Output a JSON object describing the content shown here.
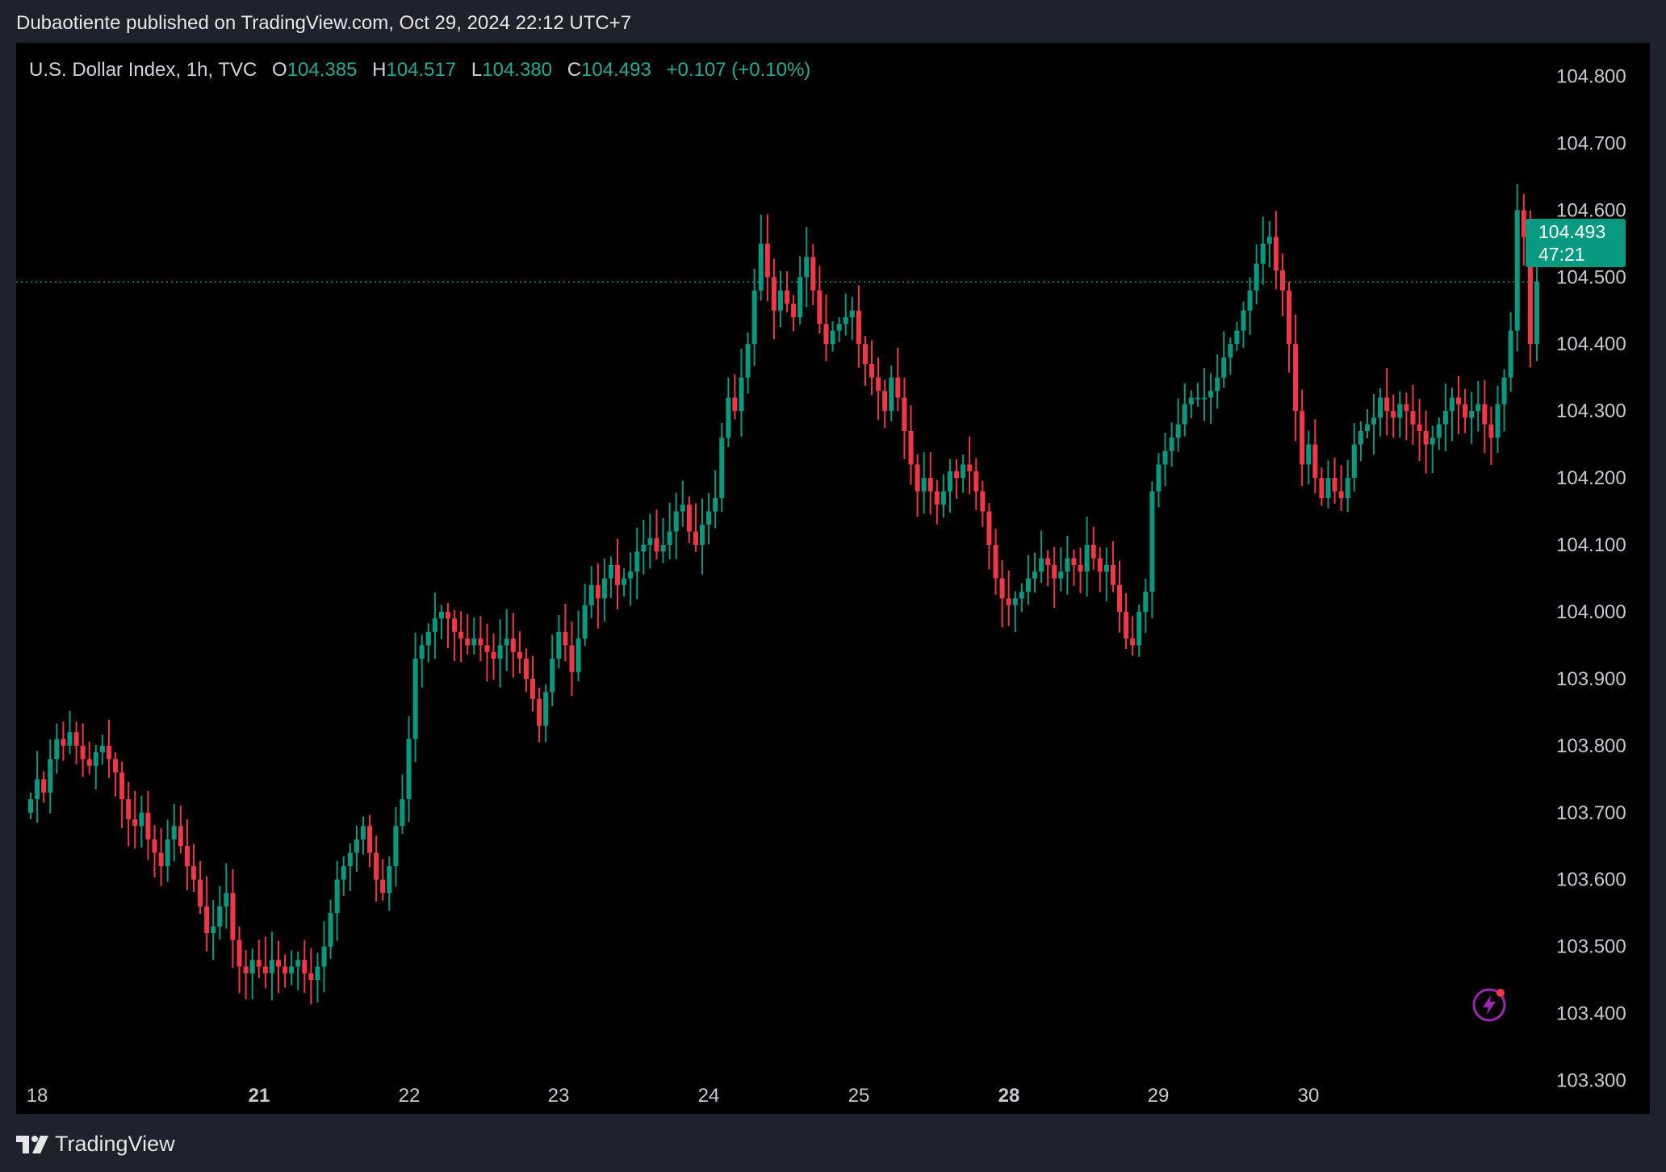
{
  "header": {
    "published": "Dubaotiente published on TradingView.com, Oct 29, 2024 22:12 UTC+7"
  },
  "legend": {
    "symbol": "U.S. Dollar Index, 1h, TVC",
    "open_label": "O",
    "open": "104.385",
    "high_label": "H",
    "high": "104.517",
    "low_label": "L",
    "low": "104.380",
    "close_label": "C",
    "close": "104.493",
    "change": "+0.107 (+0.10%)"
  },
  "price_badge": {
    "price": "104.493",
    "countdown": "47:21"
  },
  "footer": {
    "brand": "TradingView"
  },
  "colors": {
    "up": "#089981",
    "down": "#f23645",
    "background": "#000000",
    "frame": "#1e222d",
    "text": "#c7c9cf"
  },
  "chart_data": {
    "type": "candlestick",
    "ylim": [
      103.25,
      104.85
    ],
    "ytick_labels": [
      "104.800",
      "104.700",
      "104.600",
      "104.500",
      "104.400",
      "104.300",
      "104.200",
      "104.100",
      "104.000",
      "103.900",
      "103.800",
      "103.700",
      "103.600",
      "103.500",
      "103.400",
      "103.300"
    ],
    "xtick_labels": [
      {
        "label": "18",
        "bold": false
      },
      {
        "label": "21",
        "bold": true
      },
      {
        "label": "22",
        "bold": false
      },
      {
        "label": "23",
        "bold": false
      },
      {
        "label": "24",
        "bold": false
      },
      {
        "label": "25",
        "bold": false
      },
      {
        "label": "28",
        "bold": true
      },
      {
        "label": "29",
        "bold": false
      },
      {
        "label": "30",
        "bold": false
      }
    ],
    "last_price": 104.493,
    "closes": [
      103.72,
      103.75,
      103.73,
      103.78,
      103.81,
      103.8,
      103.82,
      103.8,
      103.78,
      103.77,
      103.79,
      103.8,
      103.78,
      103.76,
      103.72,
      103.69,
      103.68,
      103.7,
      103.66,
      103.64,
      103.62,
      103.66,
      103.68,
      103.65,
      103.62,
      103.6,
      103.56,
      103.52,
      103.53,
      103.56,
      103.58,
      103.51,
      103.47,
      103.46,
      103.48,
      103.47,
      103.46,
      103.48,
      103.47,
      103.46,
      103.47,
      103.48,
      103.46,
      103.45,
      103.47,
      103.5,
      103.55,
      103.6,
      103.62,
      103.64,
      103.66,
      103.68,
      103.64,
      103.6,
      103.58,
      103.62,
      103.68,
      103.72,
      103.81,
      103.93,
      103.95,
      103.97,
      103.99,
      104.0,
      103.99,
      103.97,
      103.96,
      103.95,
      103.96,
      103.95,
      103.94,
      103.93,
      103.95,
      103.96,
      103.94,
      103.93,
      103.9,
      103.87,
      103.83,
      103.88,
      103.93,
      103.97,
      103.95,
      103.91,
      103.96,
      104.01,
      104.04,
      104.02,
      104.05,
      104.07,
      104.04,
      104.05,
      104.06,
      104.09,
      104.1,
      104.11,
      104.09,
      104.1,
      104.12,
      104.15,
      104.16,
      104.12,
      104.1,
      104.13,
      104.15,
      104.17,
      104.26,
      104.32,
      104.3,
      104.35,
      104.4,
      104.48,
      104.55,
      104.5,
      104.45,
      104.48,
      104.46,
      104.44,
      104.5,
      104.53,
      104.48,
      104.43,
      104.4,
      104.42,
      104.43,
      104.44,
      104.45,
      104.4,
      104.37,
      104.35,
      104.33,
      104.3,
      104.35,
      104.32,
      104.27,
      104.22,
      104.18,
      104.2,
      104.18,
      104.16,
      104.18,
      104.21,
      104.2,
      104.22,
      104.21,
      104.18,
      104.15,
      104.1,
      104.05,
      104.02,
      104.01,
      104.02,
      104.03,
      104.05,
      104.06,
      104.08,
      104.07,
      104.05,
      104.06,
      104.08,
      104.07,
      104.06,
      104.1,
      104.08,
      104.06,
      104.07,
      104.04,
      104.0,
      103.96,
      103.95,
      104.0,
      104.03,
      104.18,
      104.22,
      104.24,
      104.26,
      104.28,
      104.31,
      104.32,
      104.32,
      104.32,
      104.33,
      104.35,
      104.38,
      104.4,
      104.42,
      104.45,
      104.48,
      104.52,
      104.55,
      104.56,
      104.51,
      104.48,
      104.4,
      104.3,
      104.22,
      104.25,
      104.2,
      104.17,
      104.2,
      104.18,
      104.17,
      104.2,
      104.25,
      104.27,
      104.28,
      104.29,
      104.32,
      104.3,
      104.29,
      104.31,
      104.3,
      104.28,
      104.27,
      104.25,
      104.26,
      104.28,
      104.3,
      104.32,
      104.31,
      104.29,
      104.3,
      104.31,
      104.28,
      104.26,
      104.31,
      104.35,
      104.42,
      104.6,
      104.56,
      104.4,
      104.493
    ]
  }
}
